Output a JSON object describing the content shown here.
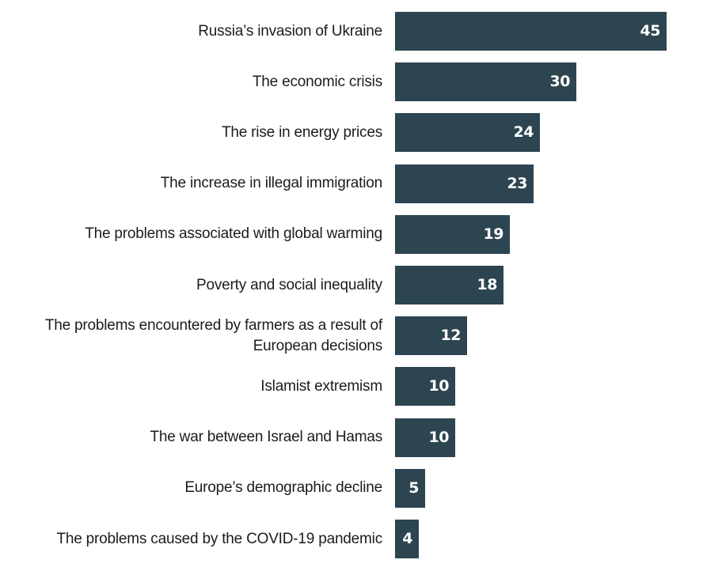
{
  "chart_data": {
    "type": "bar",
    "orientation": "horizontal",
    "title": "",
    "xlabel": "",
    "ylabel": "",
    "bar_color": "#2c4550",
    "value_color": "#ffffff",
    "xlim": [
      0,
      45
    ],
    "categories": [
      "Russia’s invasion of Ukraine",
      "The economic crisis",
      "The rise in energy prices",
      "The increase in illegal immigration",
      "The problems associated with global warming",
      "Poverty and social inequality",
      "The problems encountered by farmers as a result of European decisions",
      "Islamist extremism",
      "The war between Israel and Hamas",
      "Europe’s demographic decline",
      "The problems caused by the COVID-19 pandemic"
    ],
    "label_lines": [
      [
        "Russia’s invasion of Ukraine"
      ],
      [
        "The economic crisis"
      ],
      [
        "The rise in energy prices"
      ],
      [
        "The increase in illegal immigration"
      ],
      [
        "The problems associated with global warming"
      ],
      [
        "Poverty and social inequality"
      ],
      [
        "The problems encountered by farmers as a result of",
        "European decisions"
      ],
      [
        "Islamist extremism"
      ],
      [
        "The war between Israel and Hamas"
      ],
      [
        "Europe’s demographic decline"
      ],
      [
        "The problems caused by the COVID-19 pandemic"
      ]
    ],
    "values": [
      45,
      30,
      24,
      23,
      19,
      18,
      12,
      10,
      10,
      5,
      4
    ]
  }
}
